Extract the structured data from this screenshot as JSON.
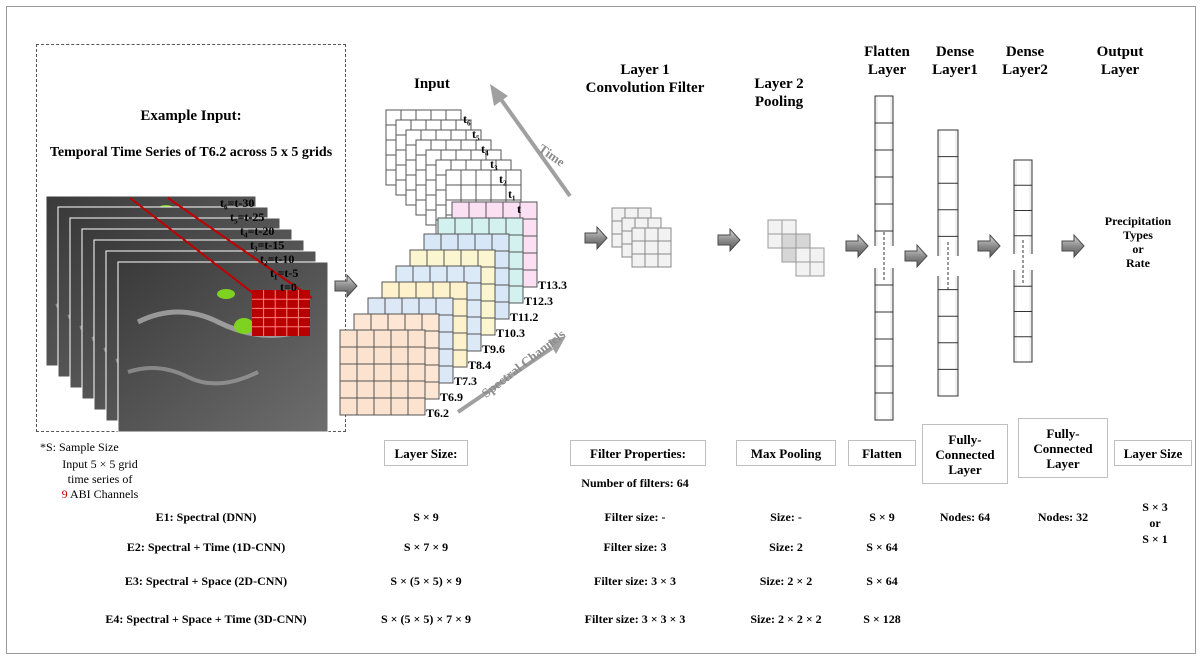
{
  "example": {
    "title": "Example Input:",
    "subtitle": "Temporal Time Series of T6.2 across 5 x 5 grids",
    "time_labels": [
      "t₆=t-30",
      "t₅=t-25",
      "t₄=t-20",
      "t₃=t-15",
      "t₂=t-10",
      "t₁=t-5",
      "t=0"
    ]
  },
  "input": {
    "title": "Input",
    "time_axis_label": "Time",
    "time_steps": [
      "t₆",
      "t₅",
      "t₄",
      "t₃",
      "t₂",
      "t₁",
      "t"
    ],
    "channel_axis_label": "Spectral Channels",
    "channels": [
      "T13.3",
      "T12.3",
      "T11.2",
      "T10.3",
      "T9.6",
      "T8.4",
      "T7.3",
      "T6.9",
      "T6.2"
    ],
    "channel_colors": [
      "#fbe3cf",
      "#fde6d3",
      "#dde8f6",
      "#fdf2cc",
      "#dce9f7",
      "#fbf6cf",
      "#d7e7f8",
      "#d3f2ef",
      "#fbe0f4"
    ]
  },
  "layers": {
    "conv_title_1": "Layer 1",
    "conv_title_2": "Convolution Filter",
    "pool_title_1": "Layer 2",
    "pool_title_2": "Pooling",
    "flatten_title_1": "Flatten",
    "flatten_title_2": "Layer",
    "dense1_title_1": "Dense",
    "dense1_title_2": "Layer1",
    "dense2_title_1": "Dense",
    "dense2_title_2": "Layer2",
    "output_title_1": "Output",
    "output_title_2": "Layer",
    "output_text_1": "Precipitation",
    "output_text_2": "Types",
    "output_text_3": "or",
    "output_text_4": "Rate"
  },
  "notes": {
    "sample_size": "*S: Sample Size",
    "input_desc_1": "Input 5 ×  5 grid",
    "input_desc_2": "time series of",
    "input_desc_num": "9",
    "input_desc_3": " ABI Channels",
    "num_color": "#c00000"
  },
  "table": {
    "headers": {
      "layer_size": "Layer Size:",
      "filter_props": "Filter Properties:",
      "max_pooling": "Max Pooling",
      "flatten": "Flatten",
      "fc1": "Fully-Connected Layer",
      "fc2": "Fully-Connected Layer",
      "out_size": "Layer Size"
    },
    "num_filters": "Number of filters: 64",
    "rows": [
      {
        "name": "E1: Spectral (DNN)",
        "layer_size": "S × 9",
        "filter": "Filter size: -",
        "pool": "Size: -",
        "flatten": "S × 9"
      },
      {
        "name": "E2: Spectral  + Time (1D-CNN)",
        "layer_size": "S × 7 × 9",
        "filter": "Filter size: 3",
        "pool": "Size: 2",
        "flatten": "S × 64"
      },
      {
        "name": "E3: Spectral + Space (2D-CNN)",
        "layer_size": "S × (5 × 5)  × 9",
        "filter": "Filter size: 3 × 3",
        "pool": "Size: 2 × 2",
        "flatten": "S × 64"
      },
      {
        "name": "E4: Spectral + Space + Time (3D-CNN)",
        "layer_size": "S × (5 × 5) × 7 × 9",
        "filter": "Filter size: 3 × 3 × 3",
        "pool": "Size: 2 × 2 × 2",
        "flatten": "S × 128"
      }
    ],
    "nodes1": "Nodes: 64",
    "nodes2": "Nodes: 32",
    "out_1": "S × 3",
    "out_or": "or",
    "out_2": "S × 1"
  }
}
